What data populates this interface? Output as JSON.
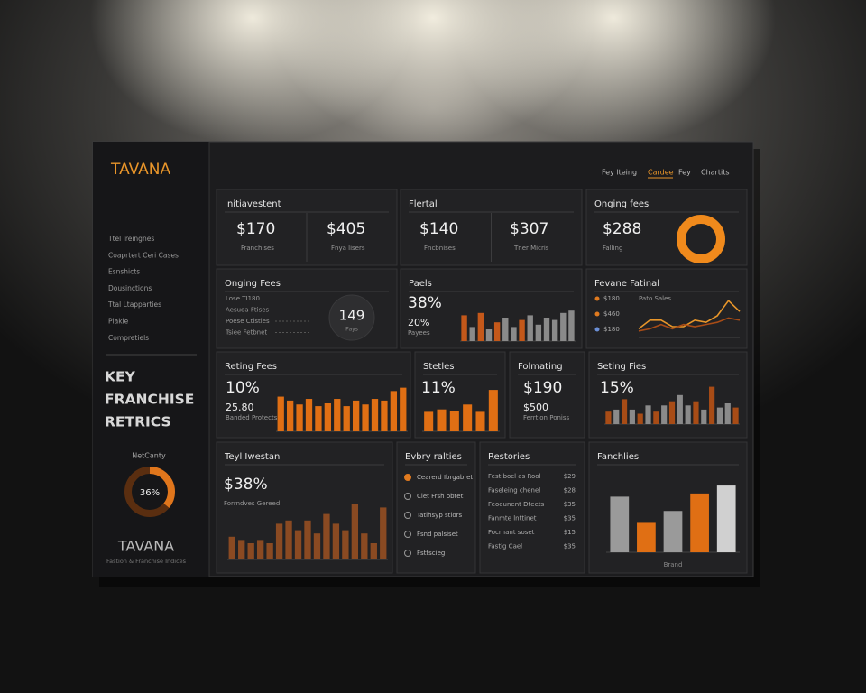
{
  "brand": "TAVANA",
  "nav": [
    {
      "label": "Fey lteing"
    },
    {
      "label": "Cardee",
      "active": true
    },
    {
      "label": "Fey"
    },
    {
      "label": "Chartits"
    }
  ],
  "sidebar": {
    "menu": [
      "Ttel Ireingnes",
      "Coaprtert Ceri Cases",
      "Esnshicts",
      "Dousinctions",
      "Ttal Ltapparties",
      "Plakle",
      "Compretiels"
    ],
    "heading": [
      "KEY",
      "FRANCHISE",
      "RETRICS"
    ],
    "donut": {
      "title": "NetCanty",
      "value": 36,
      "label": "36%",
      "color": "#e0761c",
      "track": "#5a2e10"
    },
    "footer_brand": "TAVANA",
    "footer_text": "Fastion & Franchise Indices"
  },
  "cards": [
    {
      "title": "Initiavestent",
      "stats": [
        {
          "value": "$170",
          "label": "Franchises"
        },
        {
          "value": "$405",
          "label": "Fnya lisers"
        }
      ]
    },
    {
      "title": "Flertal",
      "stats": [
        {
          "value": "$140",
          "label": "Fncbnises"
        },
        {
          "value": "$307",
          "label": "Tner Micris"
        }
      ]
    },
    {
      "title": "Onging fees",
      "stats": [
        {
          "value": "$288",
          "label": "Falling"
        }
      ],
      "donut": {
        "value": 100,
        "color": "#f08a1c"
      }
    },
    {
      "title": "Onging Fees",
      "lines": [
        "Lose TI180",
        "Aesuoa Ftises",
        "Poese Ctistles",
        "Tsiee Fetbnet"
      ],
      "gauge": {
        "value": "149",
        "label": "Pays"
      }
    },
    {
      "title": "Paels",
      "stats": [
        {
          "value": "38%"
        },
        {
          "value": "20%",
          "label": "Payees"
        }
      ],
      "bars": {
        "ylim": [
          0,
          100
        ],
        "values": [
          55,
          30,
          60,
          25,
          40,
          50,
          30,
          45,
          55,
          35,
          50,
          45,
          60,
          65
        ],
        "colors": [
          "#c4581a",
          "#8a8a8a",
          "#c4581a",
          "#8a8a8a",
          "#c4581a",
          "#8a8a8a",
          "#8a8a8a",
          "#c4581a",
          "#8a8a8a",
          "#8a8a8a",
          "#8a8a8a",
          "#8a8a8a",
          "#8a8a8a",
          "#8a8a8a"
        ]
      }
    },
    {
      "title": "Fevane Fatinal",
      "legend": [
        {
          "label": "$180",
          "color": "#e07a1f"
        },
        {
          "label": "$460",
          "color": "#e07a1f"
        },
        {
          "label": "$180",
          "color": "#6b8fd6"
        }
      ],
      "sublabel": "Pato Sales",
      "lines_chart": {
        "ylim": [
          0,
          100
        ],
        "series": [
          {
            "color": "#e8962a",
            "values": [
              20,
              40,
              40,
              25,
              25,
              40,
              35,
              50,
              85,
              60
            ]
          },
          {
            "color": "#a84c16",
            "values": [
              15,
              20,
              30,
              20,
              30,
              25,
              30,
              35,
              45,
              40
            ]
          }
        ]
      }
    },
    {
      "title": "Reting Fees",
      "stats": [
        {
          "value": "10%"
        },
        {
          "value": "25.80",
          "label": "Banded Protects"
        }
      ],
      "bars": {
        "ylim": [
          0,
          100
        ],
        "values": [
          62,
          55,
          48,
          58,
          45,
          50,
          58,
          45,
          55,
          48,
          58,
          55,
          72,
          78
        ],
        "colors": [
          "#e06f14",
          "#e06f14",
          "#e06f14",
          "#e06f14",
          "#e06f14",
          "#e06f14",
          "#e06f14",
          "#e06f14",
          "#e06f14",
          "#e06f14",
          "#e06f14",
          "#e06f14",
          "#e06f14",
          "#e06f14"
        ]
      }
    },
    {
      "title": "Stetles",
      "stats": [
        {
          "value": "11%"
        }
      ],
      "bars": {
        "ylim": [
          0,
          100
        ],
        "values": [
          40,
          45,
          42,
          55,
          40,
          85
        ],
        "colors": [
          "#e06f14",
          "#e06f14",
          "#e06f14",
          "#e06f14",
          "#e06f14",
          "#e06f14"
        ]
      }
    },
    {
      "title": "Folmating",
      "stats": [
        {
          "value": "$190"
        },
        {
          "value": "$500",
          "label": "Ferrtion Poniss"
        }
      ]
    },
    {
      "title": "Seting Fies",
      "stats": [
        {
          "value": "15%"
        }
      ],
      "bars": {
        "ylim": [
          0,
          100
        ],
        "values": [
          30,
          35,
          60,
          35,
          25,
          45,
          30,
          45,
          55,
          70,
          45,
          55,
          35,
          90,
          40,
          50,
          40
        ],
        "colors": [
          "#a84c16",
          "#8a8a8a",
          "#a84c16",
          "#8a8a8a",
          "#a84c16",
          "#8a8a8a",
          "#a84c16",
          "#8a8a8a",
          "#a84c16",
          "#8a8a8a",
          "#8a8a8a",
          "#a84c16",
          "#8a8a8a",
          "#a84c16",
          "#8a8a8a",
          "#8a8a8a",
          "#a84c16"
        ]
      }
    },
    {
      "title": "Teyl Iwestan",
      "stats": [
        {
          "value": "$38%",
          "label": "Forrndves Gereed"
        }
      ],
      "bars": {
        "ylim": [
          0,
          100
        ],
        "values": [
          35,
          30,
          25,
          30,
          25,
          55,
          60,
          45,
          60,
          40,
          70,
          55,
          45,
          85,
          40,
          25,
          80
        ],
        "colors": [
          "#8a4a22",
          "#8a4a22",
          "#8a4a22",
          "#8a4a22",
          "#8a4a22",
          "#8a4a22",
          "#8a4a22",
          "#8a4a22",
          "#8a4a22",
          "#8a4a22",
          "#8a4a22",
          "#8a4a22",
          "#8a4a22",
          "#8a4a22",
          "#8a4a22",
          "#8a4a22",
          "#8a4a22"
        ]
      }
    },
    {
      "title": "Evbry ralties",
      "items": [
        "Cearerd Ibrgabret",
        "Clet Frsh obtet",
        "Tatlhsyp stiors",
        "Fsnd palsiset",
        "Fsttscieg"
      ]
    },
    {
      "title": "Restories",
      "rows": [
        [
          "Fest bocl as Rool",
          "$29"
        ],
        [
          "Faseleing chenel",
          "$28"
        ],
        [
          "Feoeunent Dteets",
          "$35"
        ],
        [
          "Fanmte lnttinet",
          "$35"
        ],
        [
          "Focrnant soset",
          "$15"
        ],
        [
          "Fastig Cael",
          "$35"
        ]
      ]
    },
    {
      "title": "Fanchlies",
      "xlabel": "Brand",
      "bars": {
        "ylim": [
          0,
          100
        ],
        "values": [
          70,
          37,
          52,
          74,
          84
        ],
        "colors": [
          "#9a9a9a",
          "#e06f14",
          "#9a9a9a",
          "#e06f14",
          "#d0d0d0"
        ]
      }
    }
  ]
}
